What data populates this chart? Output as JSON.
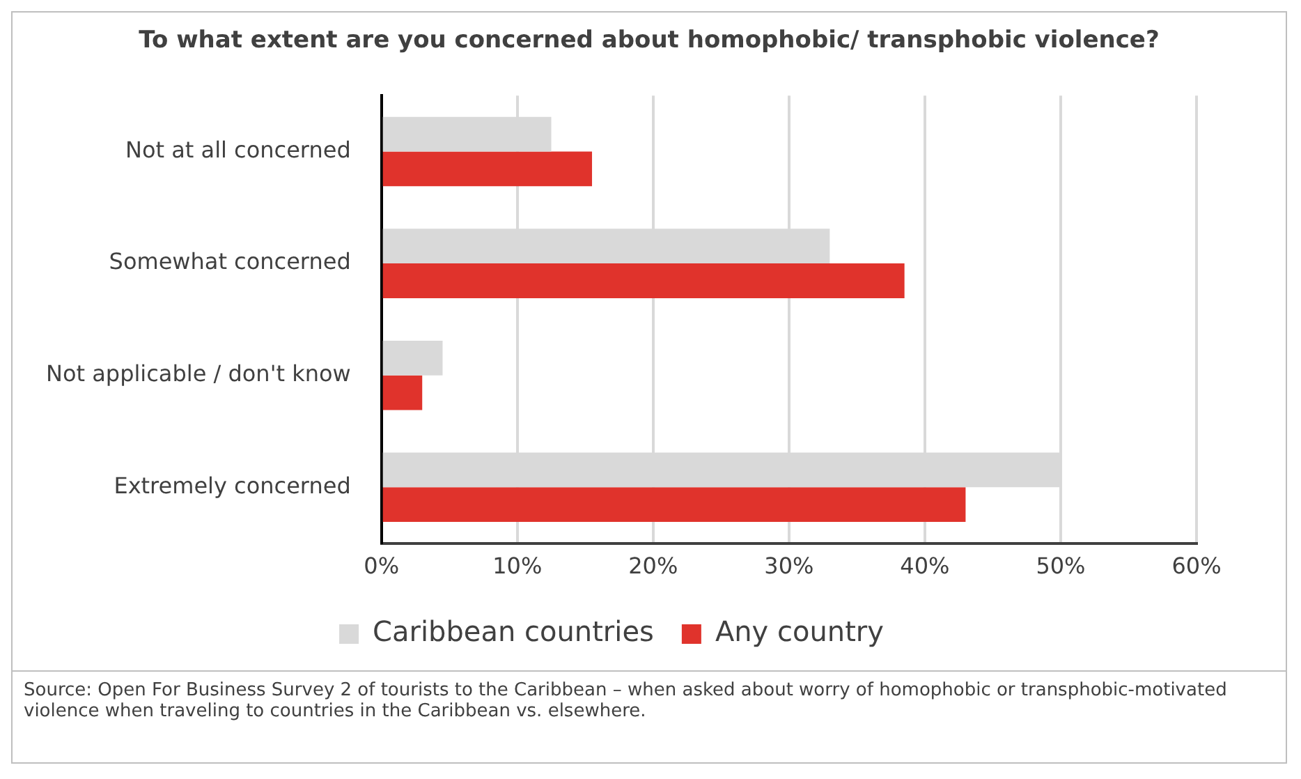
{
  "chart_data": {
    "type": "bar",
    "orientation": "horizontal",
    "title": "To what extent are you concerned about homophobic/ transphobic violence?",
    "categories": [
      "Not at all concerned",
      "Somewhat concerned",
      "Not applicable / don't know",
      "Extremely concerned"
    ],
    "series": [
      {
        "name": "Caribbean countries",
        "color": "#d9d9d9",
        "values": [
          12.5,
          33,
          4.5,
          50
        ]
      },
      {
        "name": "Any country",
        "color": "#e0332c",
        "values": [
          15.5,
          38.5,
          3,
          43
        ]
      }
    ],
    "xlim": [
      0,
      60
    ],
    "xticks": [
      {
        "value": 0,
        "label": "0%"
      },
      {
        "value": 10,
        "label": "10%"
      },
      {
        "value": 20,
        "label": "20%"
      },
      {
        "value": 30,
        "label": "30%"
      },
      {
        "value": 40,
        "label": "40%"
      },
      {
        "value": 50,
        "label": "50%"
      },
      {
        "value": 60,
        "label": "60%"
      }
    ],
    "grid": "x",
    "legend": "bottom",
    "annotations": [
      "Source: Open For Business Survey 2 of tourists to the Caribbean – when asked about worry of homophobic or transphobic-motivated violence when traveling to countries in the Caribbean vs. elsewhere."
    ]
  }
}
